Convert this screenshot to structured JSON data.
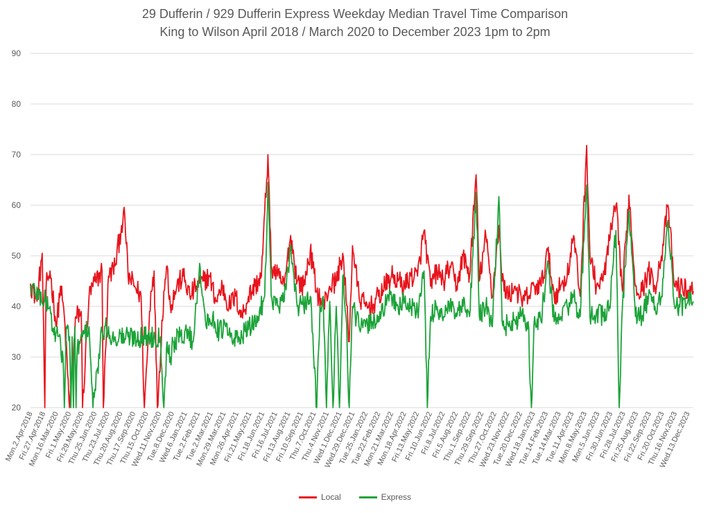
{
  "chart_data": {
    "type": "line",
    "title": "29 Dufferin / 929 Dufferin Express Weekday Median Travel Time Comparison",
    "subtitle": "King to Wilson April 2018 / March 2020 to December 2023 1pm to 2pm",
    "xlabel": "",
    "ylabel": "",
    "ylim": [
      20,
      90
    ],
    "yticks": [
      20,
      30,
      40,
      50,
      60,
      70,
      80,
      90
    ],
    "grid": true,
    "legend": "bottom",
    "x_tick_labels": [
      "Mon.2.Apr.2018",
      "Fri.27.Apr.2018",
      "Mon.16.Mar.2020",
      "Fri.1.May.2020",
      "Fri.29.May.2020",
      "Thu.25.Jun.2020",
      "Thu.23.Jul.2020",
      "Thu.20.Aug.2020",
      "Thu.17.Sep.2020",
      "Thu.15.Oct.2020",
      "Wed.11.Nov.2020",
      "Tue.8.Dec.2020",
      "Wed.6.Jan.2021",
      "Tue.2.Feb.2021",
      "Tue.2.Mar.2021",
      "Mon.29.Mar.2021",
      "Mon.26.Apr.2021",
      "Fri.21.May.2021",
      "Fri.18.Jun.2021",
      "Fri.16.Jul.2021",
      "Fri.13.Aug.2021",
      "Fri.10.Sep.2021",
      "Thu.7.Oct.2021",
      "Thu.4.Nov.2021",
      "Wed.1.Dec.2021",
      "Wed.29.Dec.2021",
      "Tue.25.Jan.2022",
      "Tue.22.Feb.2022",
      "Mon.21.Mar.2022",
      "Mon.18.Apr.2022",
      "Fri.13.May.2022",
      "Fri.10.Jun.2022",
      "Fri.8.Jul.2022",
      "Fri.5.Aug.2022",
      "Thu.1.Sep.2022",
      "Thu.29.Sep.2022",
      "Thu.27.Oct.2022",
      "Wed.23.Nov.2022",
      "Tue.20.Dec.2022",
      "Wed.18.Jan.2023",
      "Tue.14.Feb.2023",
      "Tue.14.Mar.2023",
      "Tue.11.Apr.2023",
      "Mon.8.May.2023",
      "Mon.5.Jun.2023",
      "Fri.30.Jun.2023",
      "Fri.28.Jul.2023",
      "Fri.25.Aug.2023",
      "Fri.22.Sep.2023",
      "Fri.20.Oct.2023",
      "Thu.16.Nov.2023",
      "Wed.13.Dec.2023"
    ],
    "point_count": 1020,
    "series": [
      {
        "name": "Local",
        "color": "#e8141c",
        "keypoints": [
          [
            0,
            44.5
          ],
          [
            10,
            41
          ],
          [
            18,
            50.5
          ],
          [
            22,
            20
          ],
          [
            24,
            44
          ],
          [
            30,
            47
          ],
          [
            40,
            36
          ],
          [
            46,
            44
          ],
          [
            52,
            38
          ],
          [
            60,
            20
          ],
          [
            70,
            38
          ],
          [
            78,
            39
          ],
          [
            80,
            20
          ],
          [
            90,
            42
          ],
          [
            100,
            45
          ],
          [
            110,
            47
          ],
          [
            112,
            20
          ],
          [
            120,
            46
          ],
          [
            130,
            48
          ],
          [
            140,
            56
          ],
          [
            145,
            57.8
          ],
          [
            150,
            46
          ],
          [
            160,
            44
          ],
          [
            170,
            42
          ],
          [
            175,
            20
          ],
          [
            185,
            43
          ],
          [
            190,
            47
          ],
          [
            195,
            20
          ],
          [
            205,
            43
          ],
          [
            210,
            48
          ],
          [
            215,
            40
          ],
          [
            225,
            44
          ],
          [
            235,
            46
          ],
          [
            245,
            42
          ],
          [
            255,
            44
          ],
          [
            265,
            45
          ],
          [
            275,
            46
          ],
          [
            285,
            41
          ],
          [
            295,
            44
          ],
          [
            305,
            40
          ],
          [
            315,
            42
          ],
          [
            325,
            38
          ],
          [
            335,
            42
          ],
          [
            345,
            44
          ],
          [
            355,
            46
          ],
          [
            365,
            70
          ],
          [
            370,
            48
          ],
          [
            380,
            46
          ],
          [
            390,
            44
          ],
          [
            400,
            54
          ],
          [
            410,
            45
          ],
          [
            420,
            44
          ],
          [
            430,
            51
          ],
          [
            440,
            43
          ],
          [
            450,
            40
          ],
          [
            460,
            44
          ],
          [
            470,
            45
          ],
          [
            480,
            50.5
          ],
          [
            490,
            33
          ],
          [
            495,
            52
          ],
          [
            505,
            42
          ],
          [
            515,
            40
          ],
          [
            525,
            40
          ],
          [
            535,
            42
          ],
          [
            545,
            44
          ],
          [
            555,
            46
          ],
          [
            565,
            45
          ],
          [
            575,
            44
          ],
          [
            585,
            46
          ],
          [
            595,
            46
          ],
          [
            605,
            55
          ],
          [
            615,
            44
          ],
          [
            625,
            47
          ],
          [
            635,
            45
          ],
          [
            645,
            48
          ],
          [
            655,
            44
          ],
          [
            665,
            50
          ],
          [
            675,
            46
          ],
          [
            685,
            66
          ],
          [
            690,
            45
          ],
          [
            700,
            54
          ],
          [
            710,
            42
          ],
          [
            720,
            56
          ],
          [
            725,
            45
          ],
          [
            735,
            42
          ],
          [
            745,
            44
          ],
          [
            755,
            41
          ],
          [
            765,
            42
          ],
          [
            775,
            44
          ],
          [
            785,
            44
          ],
          [
            795,
            51
          ],
          [
            805,
            42
          ],
          [
            815,
            44
          ],
          [
            825,
            46
          ],
          [
            835,
            54
          ],
          [
            845,
            42
          ],
          [
            855,
            71.8
          ],
          [
            860,
            50
          ],
          [
            870,
            44
          ],
          [
            880,
            45
          ],
          [
            890,
            53
          ],
          [
            900,
            60
          ],
          [
            910,
            43
          ],
          [
            920,
            62
          ],
          [
            930,
            44
          ],
          [
            940,
            43
          ],
          [
            950,
            47
          ],
          [
            960,
            44
          ],
          [
            970,
            50
          ],
          [
            980,
            60
          ],
          [
            990,
            44
          ],
          [
            1019,
            43
          ]
        ]
      },
      {
        "name": "Express",
        "color": "#1ca339",
        "keypoints": [
          [
            0,
            44
          ],
          [
            30,
            40
          ],
          [
            34,
            35
          ],
          [
            40,
            35
          ],
          [
            50,
            30
          ],
          [
            52,
            20
          ],
          [
            55,
            36
          ],
          [
            60,
            34
          ],
          [
            62,
            20
          ],
          [
            64,
            34
          ],
          [
            66,
            20
          ],
          [
            68,
            36
          ],
          [
            70,
            20
          ],
          [
            72,
            32
          ],
          [
            80,
            34
          ],
          [
            90,
            36
          ],
          [
            96,
            20
          ],
          [
            110,
            35
          ],
          [
            120,
            36
          ],
          [
            125,
            33
          ],
          [
            130,
            34
          ],
          [
            200,
            34
          ],
          [
            205,
            20
          ],
          [
            210,
            33
          ],
          [
            215,
            30
          ],
          [
            220,
            33
          ],
          [
            230,
            34
          ],
          [
            240,
            35
          ],
          [
            250,
            33
          ],
          [
            260,
            48.5
          ],
          [
            270,
            36
          ],
          [
            280,
            38
          ],
          [
            290,
            35
          ],
          [
            300,
            36
          ],
          [
            310,
            33
          ],
          [
            320,
            34
          ],
          [
            330,
            35
          ],
          [
            340,
            36
          ],
          [
            350,
            38
          ],
          [
            360,
            42
          ],
          [
            365,
            64.5
          ],
          [
            370,
            42
          ],
          [
            380,
            40
          ],
          [
            390,
            41
          ],
          [
            400,
            52
          ],
          [
            410,
            40
          ],
          [
            420,
            40
          ],
          [
            430,
            42
          ],
          [
            440,
            20
          ],
          [
            445,
            40
          ],
          [
            450,
            42
          ],
          [
            455,
            20
          ],
          [
            460,
            41
          ],
          [
            465,
            20
          ],
          [
            470,
            40
          ],
          [
            475,
            20
          ],
          [
            480,
            46
          ],
          [
            485,
            38
          ],
          [
            490,
            20
          ],
          [
            495,
            40
          ],
          [
            505,
            36
          ],
          [
            515,
            36
          ],
          [
            525,
            37
          ],
          [
            535,
            38
          ],
          [
            545,
            40
          ],
          [
            555,
            42
          ],
          [
            565,
            40
          ],
          [
            575,
            41
          ],
          [
            585,
            40
          ],
          [
            595,
            39
          ],
          [
            605,
            47
          ],
          [
            610,
            20
          ],
          [
            615,
            38
          ],
          [
            625,
            40
          ],
          [
            635,
            38
          ],
          [
            645,
            40
          ],
          [
            655,
            38
          ],
          [
            665,
            40
          ],
          [
            675,
            38
          ],
          [
            685,
            62.5
          ],
          [
            690,
            38
          ],
          [
            700,
            40
          ],
          [
            710,
            36
          ],
          [
            720,
            61.7
          ],
          [
            725,
            37
          ],
          [
            735,
            36
          ],
          [
            745,
            37
          ],
          [
            755,
            38
          ],
          [
            765,
            37
          ],
          [
            770,
            20
          ],
          [
            775,
            38
          ],
          [
            785,
            37
          ],
          [
            795,
            49
          ],
          [
            805,
            37
          ],
          [
            815,
            38
          ],
          [
            825,
            40
          ],
          [
            835,
            42
          ],
          [
            845,
            38
          ],
          [
            855,
            64
          ],
          [
            860,
            38
          ],
          [
            870,
            39
          ],
          [
            880,
            38
          ],
          [
            890,
            40
          ],
          [
            900,
            55
          ],
          [
            905,
            20
          ],
          [
            910,
            40
          ],
          [
            920,
            59
          ],
          [
            930,
            38
          ],
          [
            940,
            38
          ],
          [
            950,
            42
          ],
          [
            960,
            40
          ],
          [
            970,
            42
          ],
          [
            980,
            57
          ],
          [
            990,
            40
          ],
          [
            1019,
            41
          ]
        ]
      }
    ]
  },
  "legend": {
    "items": [
      {
        "label": "Local",
        "color": "#e8141c"
      },
      {
        "label": "Express",
        "color": "#1ca339"
      }
    ]
  }
}
